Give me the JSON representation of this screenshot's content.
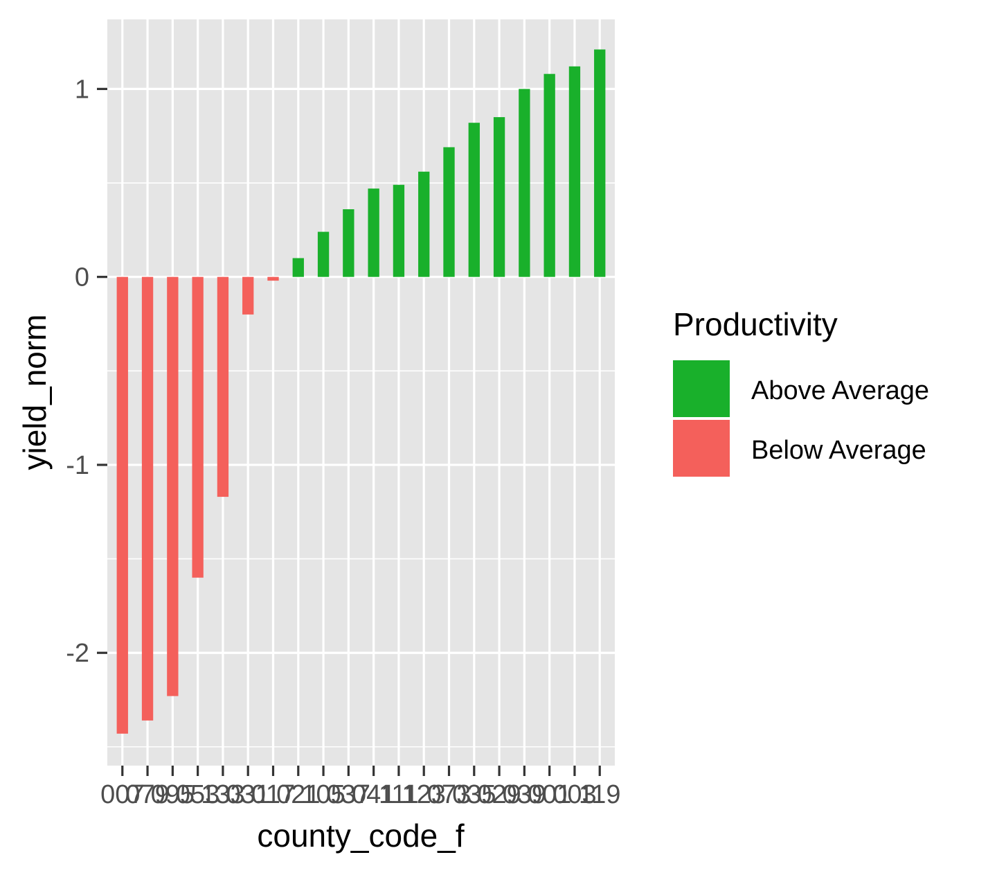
{
  "chart_data": {
    "type": "bar",
    "xlabel": "county_code_f",
    "ylabel": "yield_norm",
    "ylim": [
      -2.6,
      1.37
    ],
    "yticks": [
      -2,
      -1,
      0,
      1
    ],
    "grid": true,
    "legend_position": "right",
    "categories": [
      "007",
      "079",
      "095",
      "053",
      "133",
      "031",
      "017",
      "021",
      "105",
      "037",
      "041",
      "111",
      "123",
      "073",
      "035",
      "029",
      "039",
      "001",
      "003",
      "119"
    ],
    "values": [
      -2.43,
      -2.36,
      -2.23,
      -1.6,
      -1.17,
      -0.2,
      -0.02,
      0.1,
      0.24,
      0.36,
      0.47,
      0.49,
      0.56,
      0.69,
      0.82,
      0.85,
      1.0,
      1.08,
      1.12,
      1.21
    ],
    "groups": [
      "Below Average",
      "Below Average",
      "Below Average",
      "Below Average",
      "Below Average",
      "Below Average",
      "Below Average",
      "Above Average",
      "Above Average",
      "Above Average",
      "Above Average",
      "Above Average",
      "Above Average",
      "Above Average",
      "Above Average",
      "Above Average",
      "Above Average",
      "Above Average",
      "Above Average",
      "Above Average"
    ],
    "legend": {
      "title": "Productivity",
      "entries": [
        {
          "label": "Above Average",
          "color": "#19B02B"
        },
        {
          "label": "Below Average",
          "color": "#F4605B"
        }
      ]
    },
    "colors": {
      "panel": "#E5E5E5",
      "grid": "#FFFFFF"
    }
  }
}
